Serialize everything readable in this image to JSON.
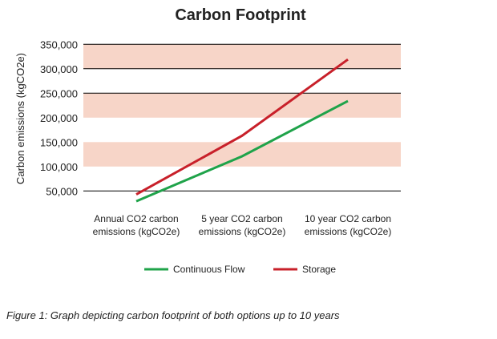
{
  "chart_data": {
    "type": "line",
    "title": "Carbon Footprint",
    "ylabel": "Carbon emissions (kgCO2e)",
    "xlabel": "",
    "categories": [
      [
        "Annual CO2 carbon",
        "emissions (kgCO2e)"
      ],
      [
        "5 year CO2 carbon",
        "emissions (kgCO2e)"
      ],
      [
        "10 year CO2 carbon",
        "emissions (kgCO2e)"
      ]
    ],
    "yticks": [
      50000,
      100000,
      150000,
      200000,
      250000,
      300000,
      350000
    ],
    "ytick_labels": [
      "50,000",
      "100,000",
      "150,000",
      "200,000",
      "250,000",
      "300,000",
      "350,000"
    ],
    "ylim": [
      50000,
      350000
    ],
    "bands": [
      [
        100000,
        150000
      ],
      [
        200000,
        250000
      ],
      [
        300000,
        350000
      ]
    ],
    "gridlines": [
      50000,
      250000,
      300000,
      350000
    ],
    "legend_position": "bottom",
    "series": [
      {
        "name": "Continuous Flow",
        "color": "#1fa34a",
        "values": [
          29000,
          121000,
          234000
        ]
      },
      {
        "name": "Storage",
        "color": "#c8202a",
        "values": [
          43000,
          163000,
          319000
        ]
      }
    ],
    "band_color": "#f7d5c8"
  },
  "caption": "Figure 1: Graph depicting carbon footprint of both options up to 10 years"
}
